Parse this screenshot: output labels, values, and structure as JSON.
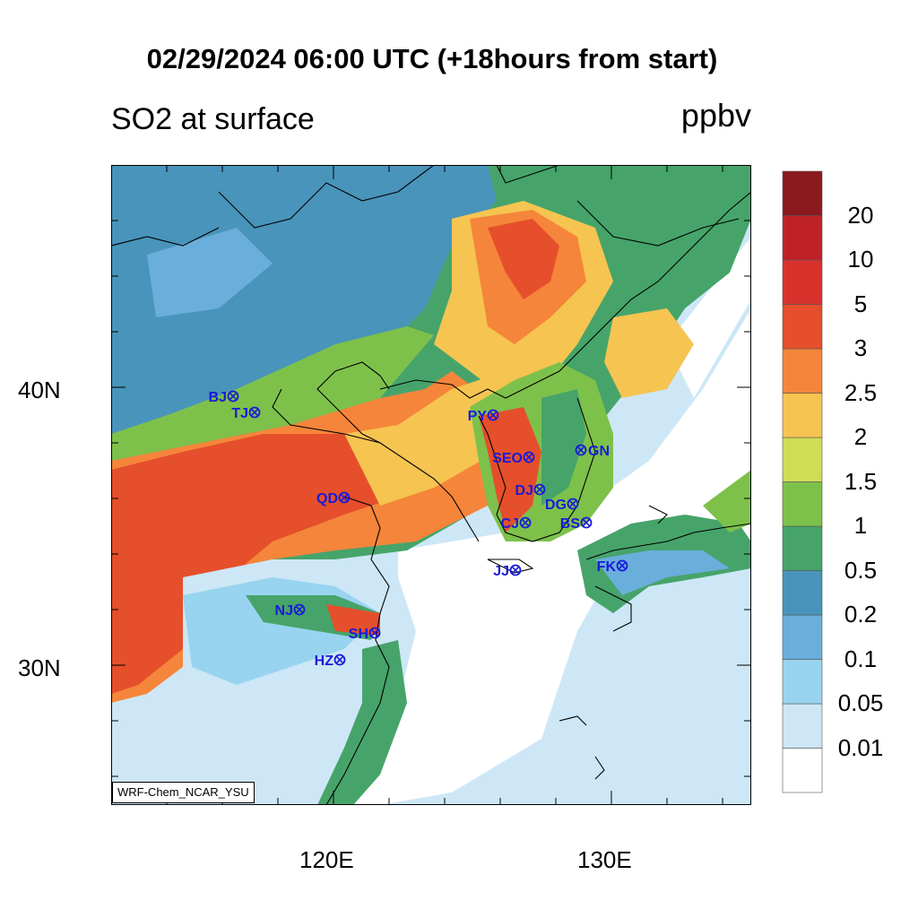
{
  "title": "02/29/2024 06:00 UTC (+18hours from start)",
  "variable_label": "SO2 at surface",
  "units": "ppbv",
  "credit": "WRF-Chem_NCAR_YSU",
  "axes": {
    "lon_labels": [
      "120E",
      "130E"
    ],
    "lat_labels": [
      "40N",
      "30N"
    ]
  },
  "colorbar": {
    "levels": [
      "0.01",
      "0.05",
      "0.1",
      "0.2",
      "0.5",
      "1",
      "1.5",
      "2",
      "2.5",
      "3",
      "5",
      "10",
      "20"
    ],
    "colors": [
      "#ffffff",
      "#cde7f6",
      "#98d4ef",
      "#6aaedc",
      "#4994bb",
      "#46a46a",
      "#7dc14b",
      "#cfdc56",
      "#f6c451",
      "#f5853a",
      "#e54f2b",
      "#d9322d",
      "#bf2226",
      "#8a1a1d"
    ]
  },
  "stations": [
    {
      "code": "BJ",
      "name": "BJ"
    },
    {
      "code": "TJ",
      "name": "TJ"
    },
    {
      "code": "PY",
      "name": "PY"
    },
    {
      "code": "SEO",
      "name": "SEO"
    },
    {
      "code": "GN",
      "name": "GN"
    },
    {
      "code": "QD",
      "name": "QD"
    },
    {
      "code": "DJ",
      "name": "DJ"
    },
    {
      "code": "DG",
      "name": "DG"
    },
    {
      "code": "CJ",
      "name": "CJ"
    },
    {
      "code": "BS",
      "name": "BS"
    },
    {
      "code": "JJ",
      "name": "JJ"
    },
    {
      "code": "FK",
      "name": "FK"
    },
    {
      "code": "NJ",
      "name": "NJ"
    },
    {
      "code": "SH",
      "name": "SH"
    },
    {
      "code": "HZ",
      "name": "HZ"
    }
  ]
}
